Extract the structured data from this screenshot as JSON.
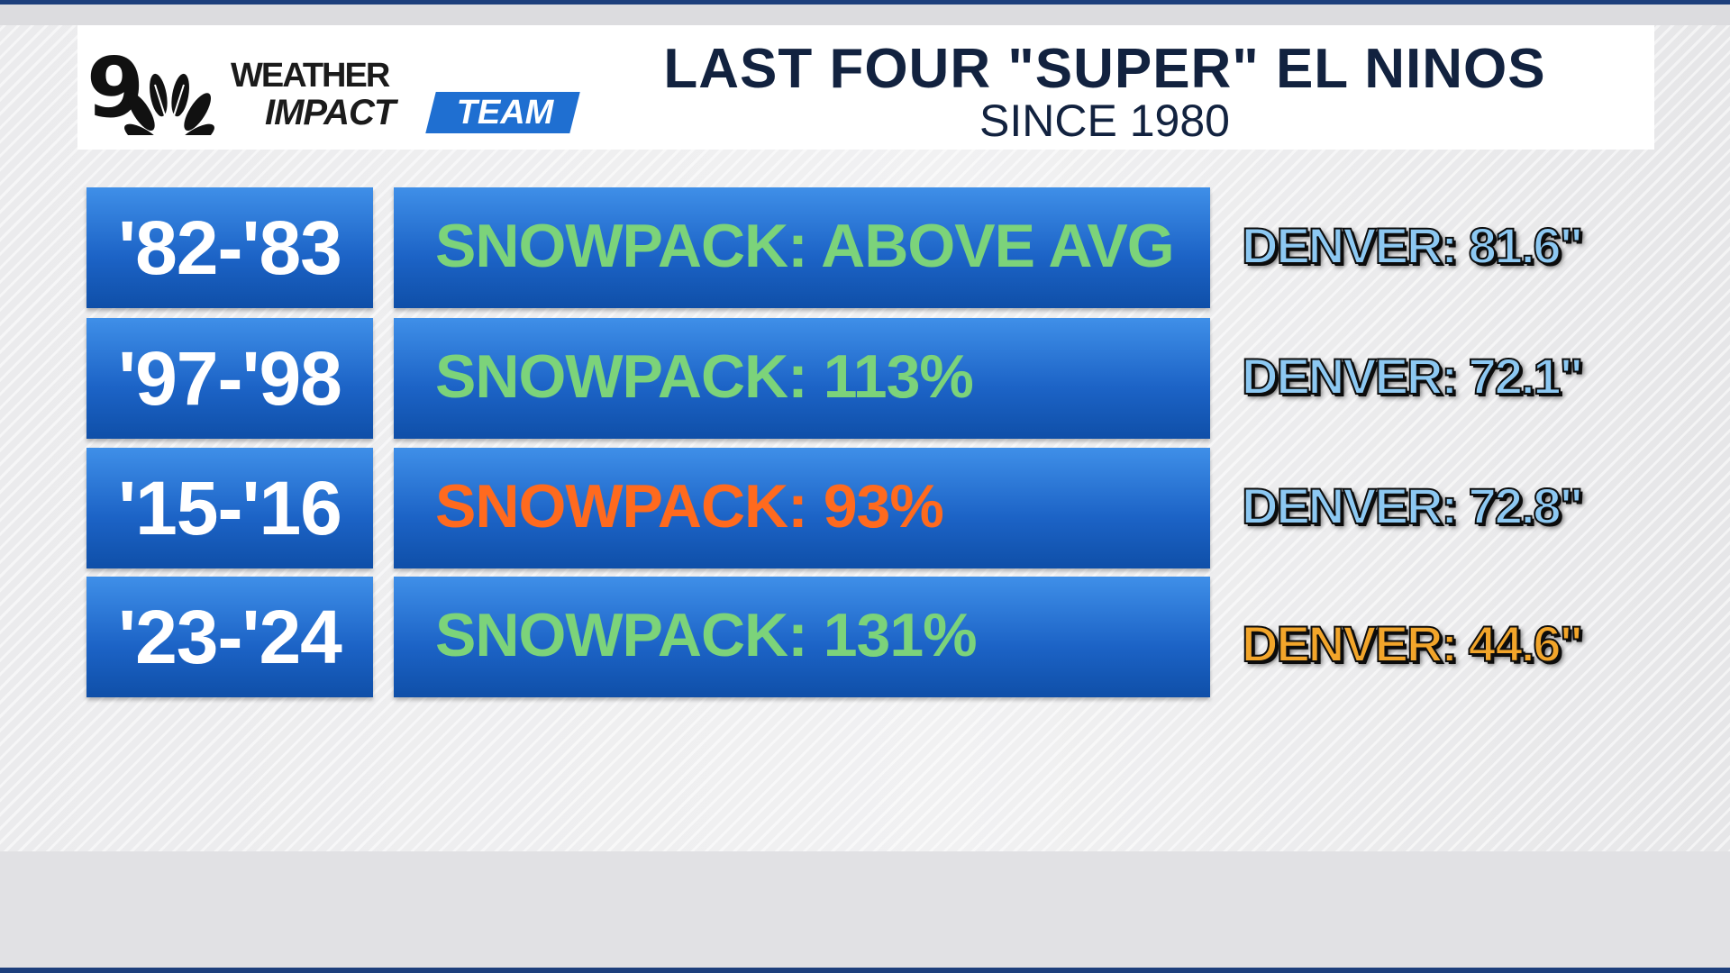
{
  "colors": {
    "box_gradient_top": "#3f8fe8",
    "box_gradient_bottom": "#0f4fa8",
    "snowpack_green": "#7cd37a",
    "snowpack_orange": "#ff6a1e",
    "denver_blue": "#8cc8f2",
    "denver_orange": "#f2a52a",
    "title_navy": "#12223f"
  },
  "logo": {
    "channel_number": "9",
    "peacock": "nbc-peacock-icon",
    "line1": "WEATHER",
    "line2": "IMPACT",
    "line3": "TEAM"
  },
  "header": {
    "title": "LAST FOUR \"SUPER\" EL NINOS",
    "subtitle": "SINCE 1980"
  },
  "rows": [
    {
      "year": "'82-'83",
      "snowpack": "SNOWPACK: ABOVE AVG",
      "snowpack_color": "#7cd37a",
      "denver": "DENVER: 81.6\"",
      "denver_color": "#8cc8f2"
    },
    {
      "year": "'97-'98",
      "snowpack": "SNOWPACK: 113%",
      "snowpack_color": "#7cd37a",
      "denver": "DENVER: 72.1\"",
      "denver_color": "#8cc8f2"
    },
    {
      "year": "'15-'16",
      "snowpack": "SNOWPACK: 93%",
      "snowpack_color": "#ff6a1e",
      "denver": "DENVER: 72.8\"",
      "denver_color": "#8cc8f2"
    },
    {
      "year": "'23-'24",
      "snowpack": "SNOWPACK: 131%",
      "snowpack_color": "#7cd37a",
      "denver": "DENVER: 44.6\"",
      "denver_color": "#f2a52a"
    }
  ]
}
